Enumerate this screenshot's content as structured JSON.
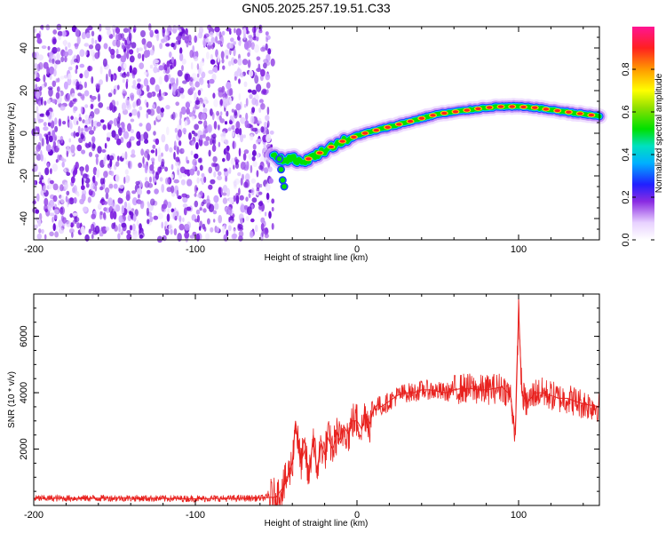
{
  "title": "GN05.2025.257.19.51.C33",
  "colors": {
    "snr_line": "#e8211e",
    "noise_dot": "#8a2be2",
    "axis": "#000000"
  },
  "chart_data": [
    {
      "type": "heatmap",
      "name": "spectrogram",
      "xlabel": "Height of straight line (km)",
      "ylabel": "Frequency (Hz)",
      "xlim": [
        -200,
        150
      ],
      "ylim": [
        -50,
        50
      ],
      "xticks": [
        -200,
        -100,
        0,
        100
      ],
      "yticks": [
        -40,
        -20,
        0,
        20,
        40
      ],
      "noise_region_x": [
        -200,
        -52
      ],
      "trace": {
        "x": [
          -52,
          -45,
          -40,
          -35,
          -30,
          -25,
          -20,
          -15,
          -10,
          -5,
          0,
          10,
          20,
          30,
          40,
          50,
          60,
          70,
          80,
          90,
          100,
          110,
          120,
          130,
          140,
          150
        ],
        "y": [
          -10,
          -13,
          -11,
          -14,
          -12,
          -10,
          -8,
          -6,
          -4,
          -3,
          -1,
          1,
          3,
          5,
          7,
          9,
          10,
          11,
          12,
          12.5,
          12.5,
          12,
          11,
          10,
          9,
          8
        ]
      },
      "colorbar": {
        "label": "Normalized spectral amplitude",
        "ticks": [
          "0.0",
          "0.2",
          "0.4",
          "0.6",
          "0.8"
        ],
        "range": [
          0,
          1
        ]
      }
    },
    {
      "type": "line",
      "name": "snr",
      "xlabel": "Height of straight line (km)",
      "ylabel": "SNR (10 * v/v)",
      "xlim": [
        -200,
        150
      ],
      "ylim": [
        0,
        7500
      ],
      "xticks": [
        -200,
        -100,
        0,
        100
      ],
      "yticks": [
        2000,
        4000,
        6000
      ],
      "series": [
        {
          "name": "SNR",
          "x": [
            -200,
            -150,
            -100,
            -60,
            -50,
            -45,
            -40,
            -38,
            -35,
            -32,
            -30,
            -27,
            -25,
            -22,
            -20,
            -18,
            -15,
            -12,
            -10,
            -8,
            -5,
            -3,
            0,
            3,
            5,
            8,
            10,
            13,
            15,
            20,
            25,
            30,
            35,
            40,
            45,
            50,
            55,
            60,
            65,
            70,
            75,
            80,
            85,
            90,
            95,
            98,
            100,
            102,
            105,
            110,
            115,
            120,
            125,
            130,
            135,
            140,
            145,
            150
          ],
          "y": [
            250,
            260,
            240,
            260,
            300,
            700,
            1500,
            3000,
            1500,
            2000,
            900,
            2500,
            1200,
            2200,
            1800,
            2400,
            2000,
            2600,
            2200,
            2800,
            2500,
            3000,
            3000,
            2700,
            3300,
            2900,
            3400,
            3600,
            3500,
            3700,
            3900,
            4000,
            4000,
            4100,
            4100,
            4050,
            4000,
            4100,
            4150,
            4150,
            4100,
            4100,
            4150,
            4200,
            3900,
            2500,
            7000,
            4000,
            3600,
            4000,
            4000,
            3900,
            3800,
            3800,
            3700,
            3600,
            3550,
            3500
          ]
        }
      ]
    }
  ]
}
